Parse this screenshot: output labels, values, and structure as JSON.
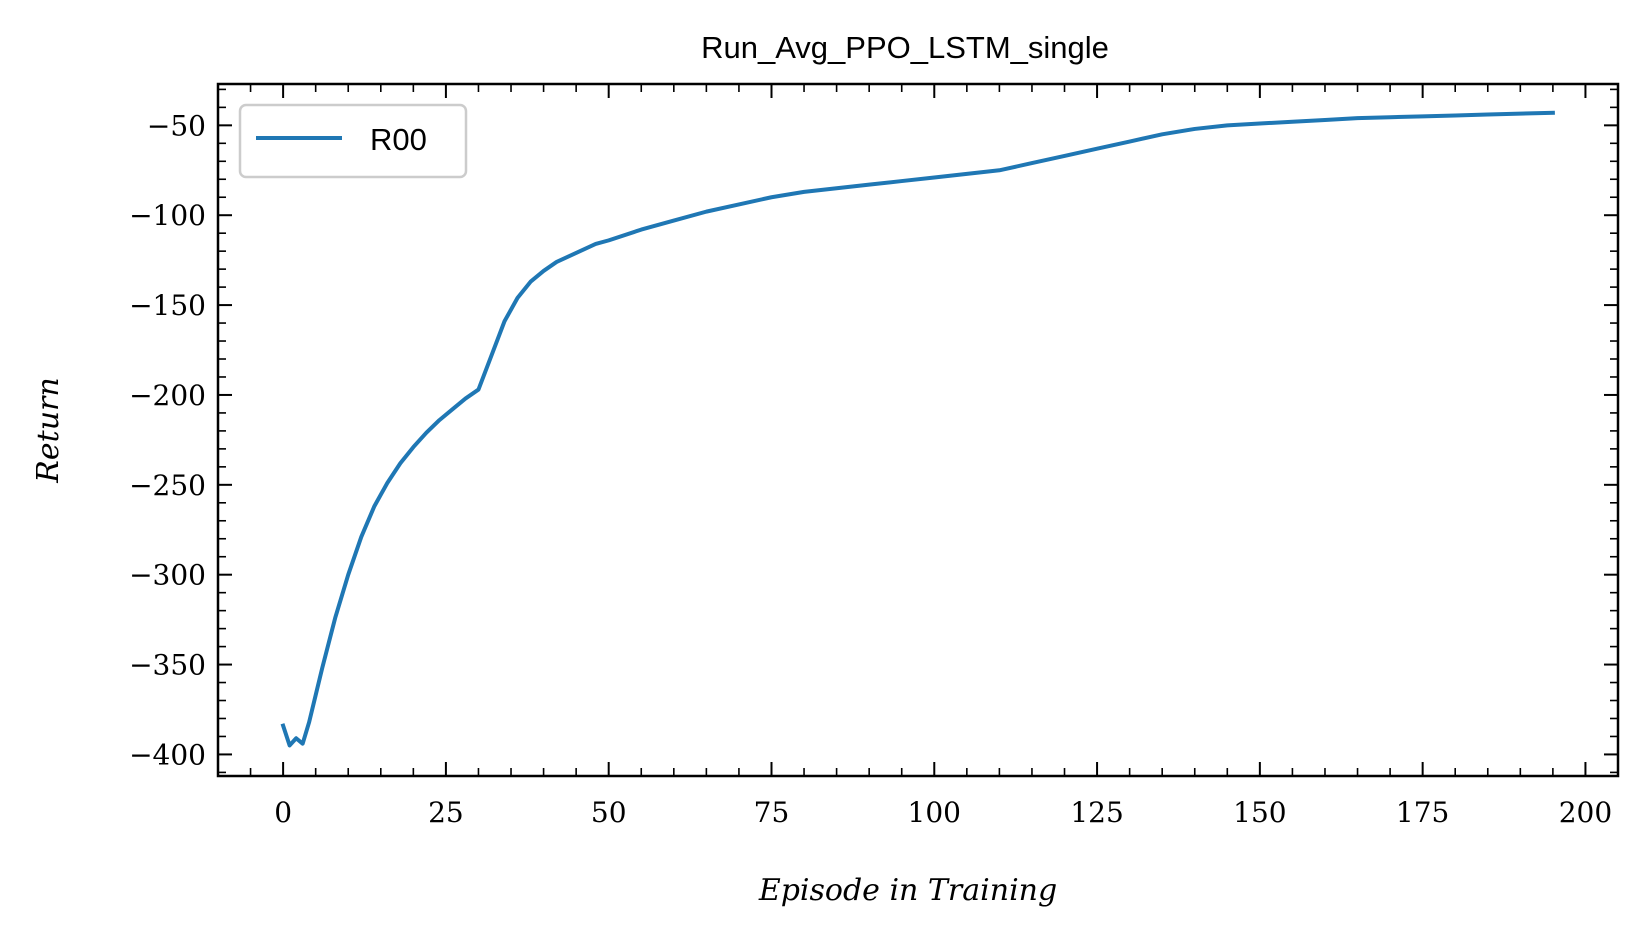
{
  "chart_data": {
    "type": "line",
    "title": "Run_Avg_PPO_LSTM_single",
    "xlabel": "Episode in Training",
    "ylabel": "Return",
    "xlim": [
      -10,
      205
    ],
    "ylim": [
      -412,
      -27
    ],
    "x_ticks": [
      0,
      25,
      50,
      75,
      100,
      125,
      150,
      175,
      200
    ],
    "x_tick_labels": [
      "0",
      "25",
      "50",
      "75",
      "100",
      "125",
      "150",
      "175",
      "200"
    ],
    "y_ticks": [
      -50,
      -100,
      -150,
      -200,
      -250,
      -300,
      -350,
      -400
    ],
    "y_tick_labels": [
      "−50",
      "−100",
      "−150",
      "−200",
      "−250",
      "−300",
      "−350",
      "−400"
    ],
    "x_minor_step": 5,
    "y_minor_step": 10,
    "grid": false,
    "legend_position": "top-left",
    "series": [
      {
        "name": "R00",
        "color": "#1f77b4",
        "x": [
          0,
          1,
          2,
          3,
          4,
          5,
          6,
          8,
          10,
          12,
          14,
          16,
          18,
          20,
          22,
          24,
          26,
          28,
          30,
          32,
          34,
          36,
          38,
          40,
          42,
          45,
          48,
          50,
          55,
          60,
          65,
          70,
          75,
          80,
          85,
          90,
          95,
          100,
          105,
          110,
          115,
          120,
          125,
          130,
          135,
          140,
          145,
          150,
          155,
          160,
          165,
          170,
          175,
          180,
          185,
          190,
          195
        ],
        "y": [
          -384,
          -395,
          -391,
          -394,
          -382,
          -367,
          -352,
          -324,
          -300,
          -279,
          -262,
          -249,
          -238,
          -229,
          -221,
          -214,
          -208,
          -202,
          -197,
          -178,
          -159,
          -146,
          -137,
          -131,
          -126,
          -121,
          -116,
          -114,
          -108,
          -103,
          -98,
          -94,
          -90,
          -87,
          -85,
          -83,
          -81,
          -79,
          -77,
          -75,
          -71,
          -67,
          -63,
          -59,
          -55,
          -52,
          -50,
          -49,
          -48,
          -47,
          -46,
          -45.5,
          -45,
          -44.5,
          -44,
          -43.5,
          -43
        ]
      }
    ]
  }
}
